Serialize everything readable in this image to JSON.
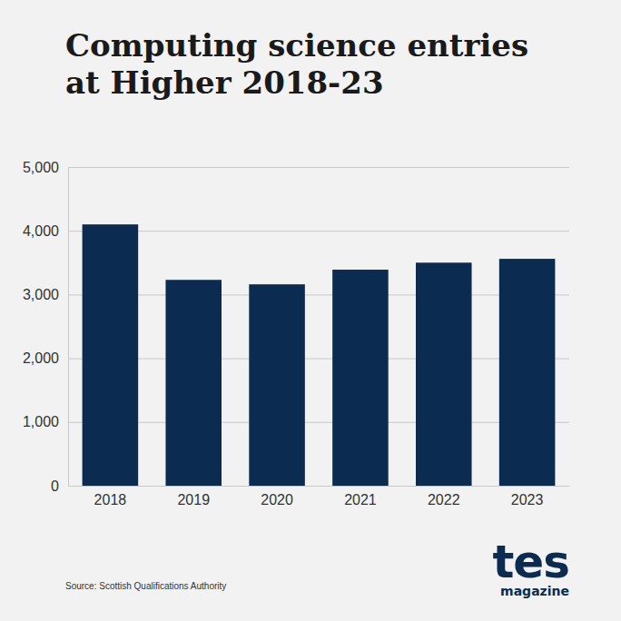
{
  "chart_data": {
    "type": "bar",
    "title": "Computing science entries at Higher 2018-23",
    "categories": [
      "2018",
      "2019",
      "2020",
      "2021",
      "2022",
      "2023"
    ],
    "values": [
      4100,
      3230,
      3160,
      3390,
      3500,
      3560
    ],
    "color": "#0c2b50",
    "ylim": [
      0,
      5000
    ],
    "yticks": [
      0,
      {
        "value": 1000,
        "label": "1,000"
      },
      {
        "value": 2000,
        "label": "2,000"
      },
      {
        "value": 3000,
        "label": "3,000"
      },
      {
        "value": 4000,
        "label": "4,000"
      },
      {
        "value": 5000,
        "label": "5,000"
      }
    ],
    "grid": true,
    "source": "Source: Scottish Qualifications Authority",
    "logo": "tes",
    "logo_subtitle": "magazine"
  }
}
